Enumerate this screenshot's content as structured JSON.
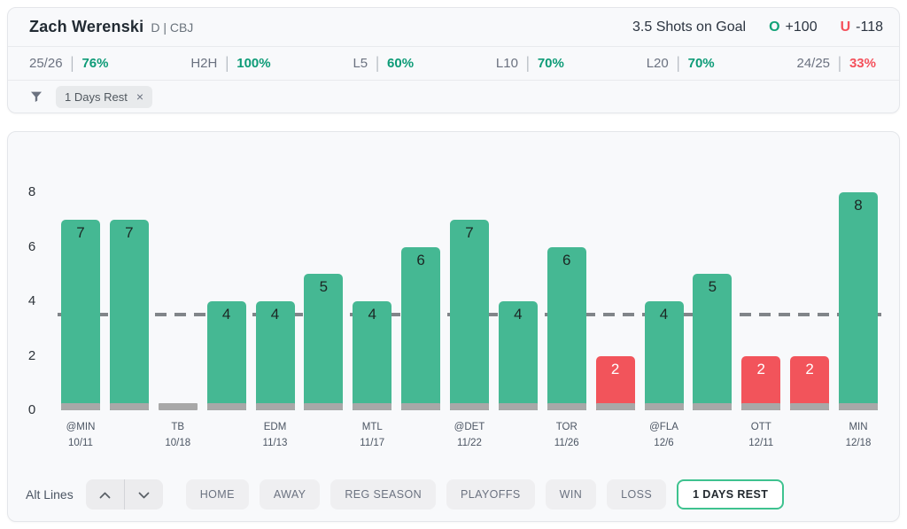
{
  "header": {
    "player": "Zach Werenski",
    "meta": "D | CBJ",
    "prop": "3.5 Shots on Goal",
    "over_label": "O",
    "over_odds": "+100",
    "under_label": "U",
    "under_odds": "-118"
  },
  "stats": [
    {
      "label": "25/26",
      "value": "76%",
      "color": "green"
    },
    {
      "label": "H2H",
      "value": "100%",
      "color": "green"
    },
    {
      "label": "L5",
      "value": "60%",
      "color": "green"
    },
    {
      "label": "L10",
      "value": "70%",
      "color": "green"
    },
    {
      "label": "L20",
      "value": "70%",
      "color": "green"
    },
    {
      "label": "24/25",
      "value": "33%",
      "color": "red"
    }
  ],
  "filter": {
    "chip_label": "1 Days Rest",
    "close_glyph": "×"
  },
  "chart_data": {
    "type": "bar",
    "title": "",
    "xlabel": "",
    "ylabel": "",
    "ylim": [
      0,
      8
    ],
    "y_ticks": [
      0,
      2,
      4,
      6,
      8
    ],
    "reference_line": 3.5,
    "grid": false,
    "bars": [
      {
        "value": 7,
        "result": "over",
        "opp": "@MIN",
        "date": "10/11"
      },
      {
        "value": 7,
        "result": "over"
      },
      {
        "value": 0,
        "result": "none",
        "opp": "TB",
        "date": "10/18"
      },
      {
        "value": 4,
        "result": "over"
      },
      {
        "value": 4,
        "result": "over",
        "opp": "EDM",
        "date": "11/13"
      },
      {
        "value": 5,
        "result": "over"
      },
      {
        "value": 4,
        "result": "over",
        "opp": "MTL",
        "date": "11/17"
      },
      {
        "value": 6,
        "result": "over"
      },
      {
        "value": 7,
        "result": "over",
        "opp": "@DET",
        "date": "11/22"
      },
      {
        "value": 4,
        "result": "over"
      },
      {
        "value": 6,
        "result": "over",
        "opp": "TOR",
        "date": "11/26"
      },
      {
        "value": 2,
        "result": "under"
      },
      {
        "value": 4,
        "result": "over",
        "opp": "@FLA",
        "date": "12/6"
      },
      {
        "value": 5,
        "result": "over"
      },
      {
        "value": 2,
        "result": "under",
        "opp": "OTT",
        "date": "12/11"
      },
      {
        "value": 2,
        "result": "under"
      },
      {
        "value": 8,
        "result": "over",
        "opp": "MIN",
        "date": "12/18"
      }
    ]
  },
  "toolbar": {
    "alt_lines_label": "Alt Lines",
    "buttons": [
      {
        "label": "HOME",
        "active": false
      },
      {
        "label": "AWAY",
        "active": false
      },
      {
        "label": "REG SEASON",
        "active": false
      },
      {
        "label": "PLAYOFFS",
        "active": false
      },
      {
        "label": "WIN",
        "active": false
      },
      {
        "label": "LOSS",
        "active": false
      },
      {
        "label": "1 DAYS REST",
        "active": true
      }
    ]
  },
  "colors": {
    "bar_over": "#45b893",
    "bar_under": "#f2545b",
    "bar_base": "#a8a8a8",
    "accent_green": "#0d9b77",
    "accent_red": "#f4515c",
    "active_button_border": "#3ec28f"
  }
}
